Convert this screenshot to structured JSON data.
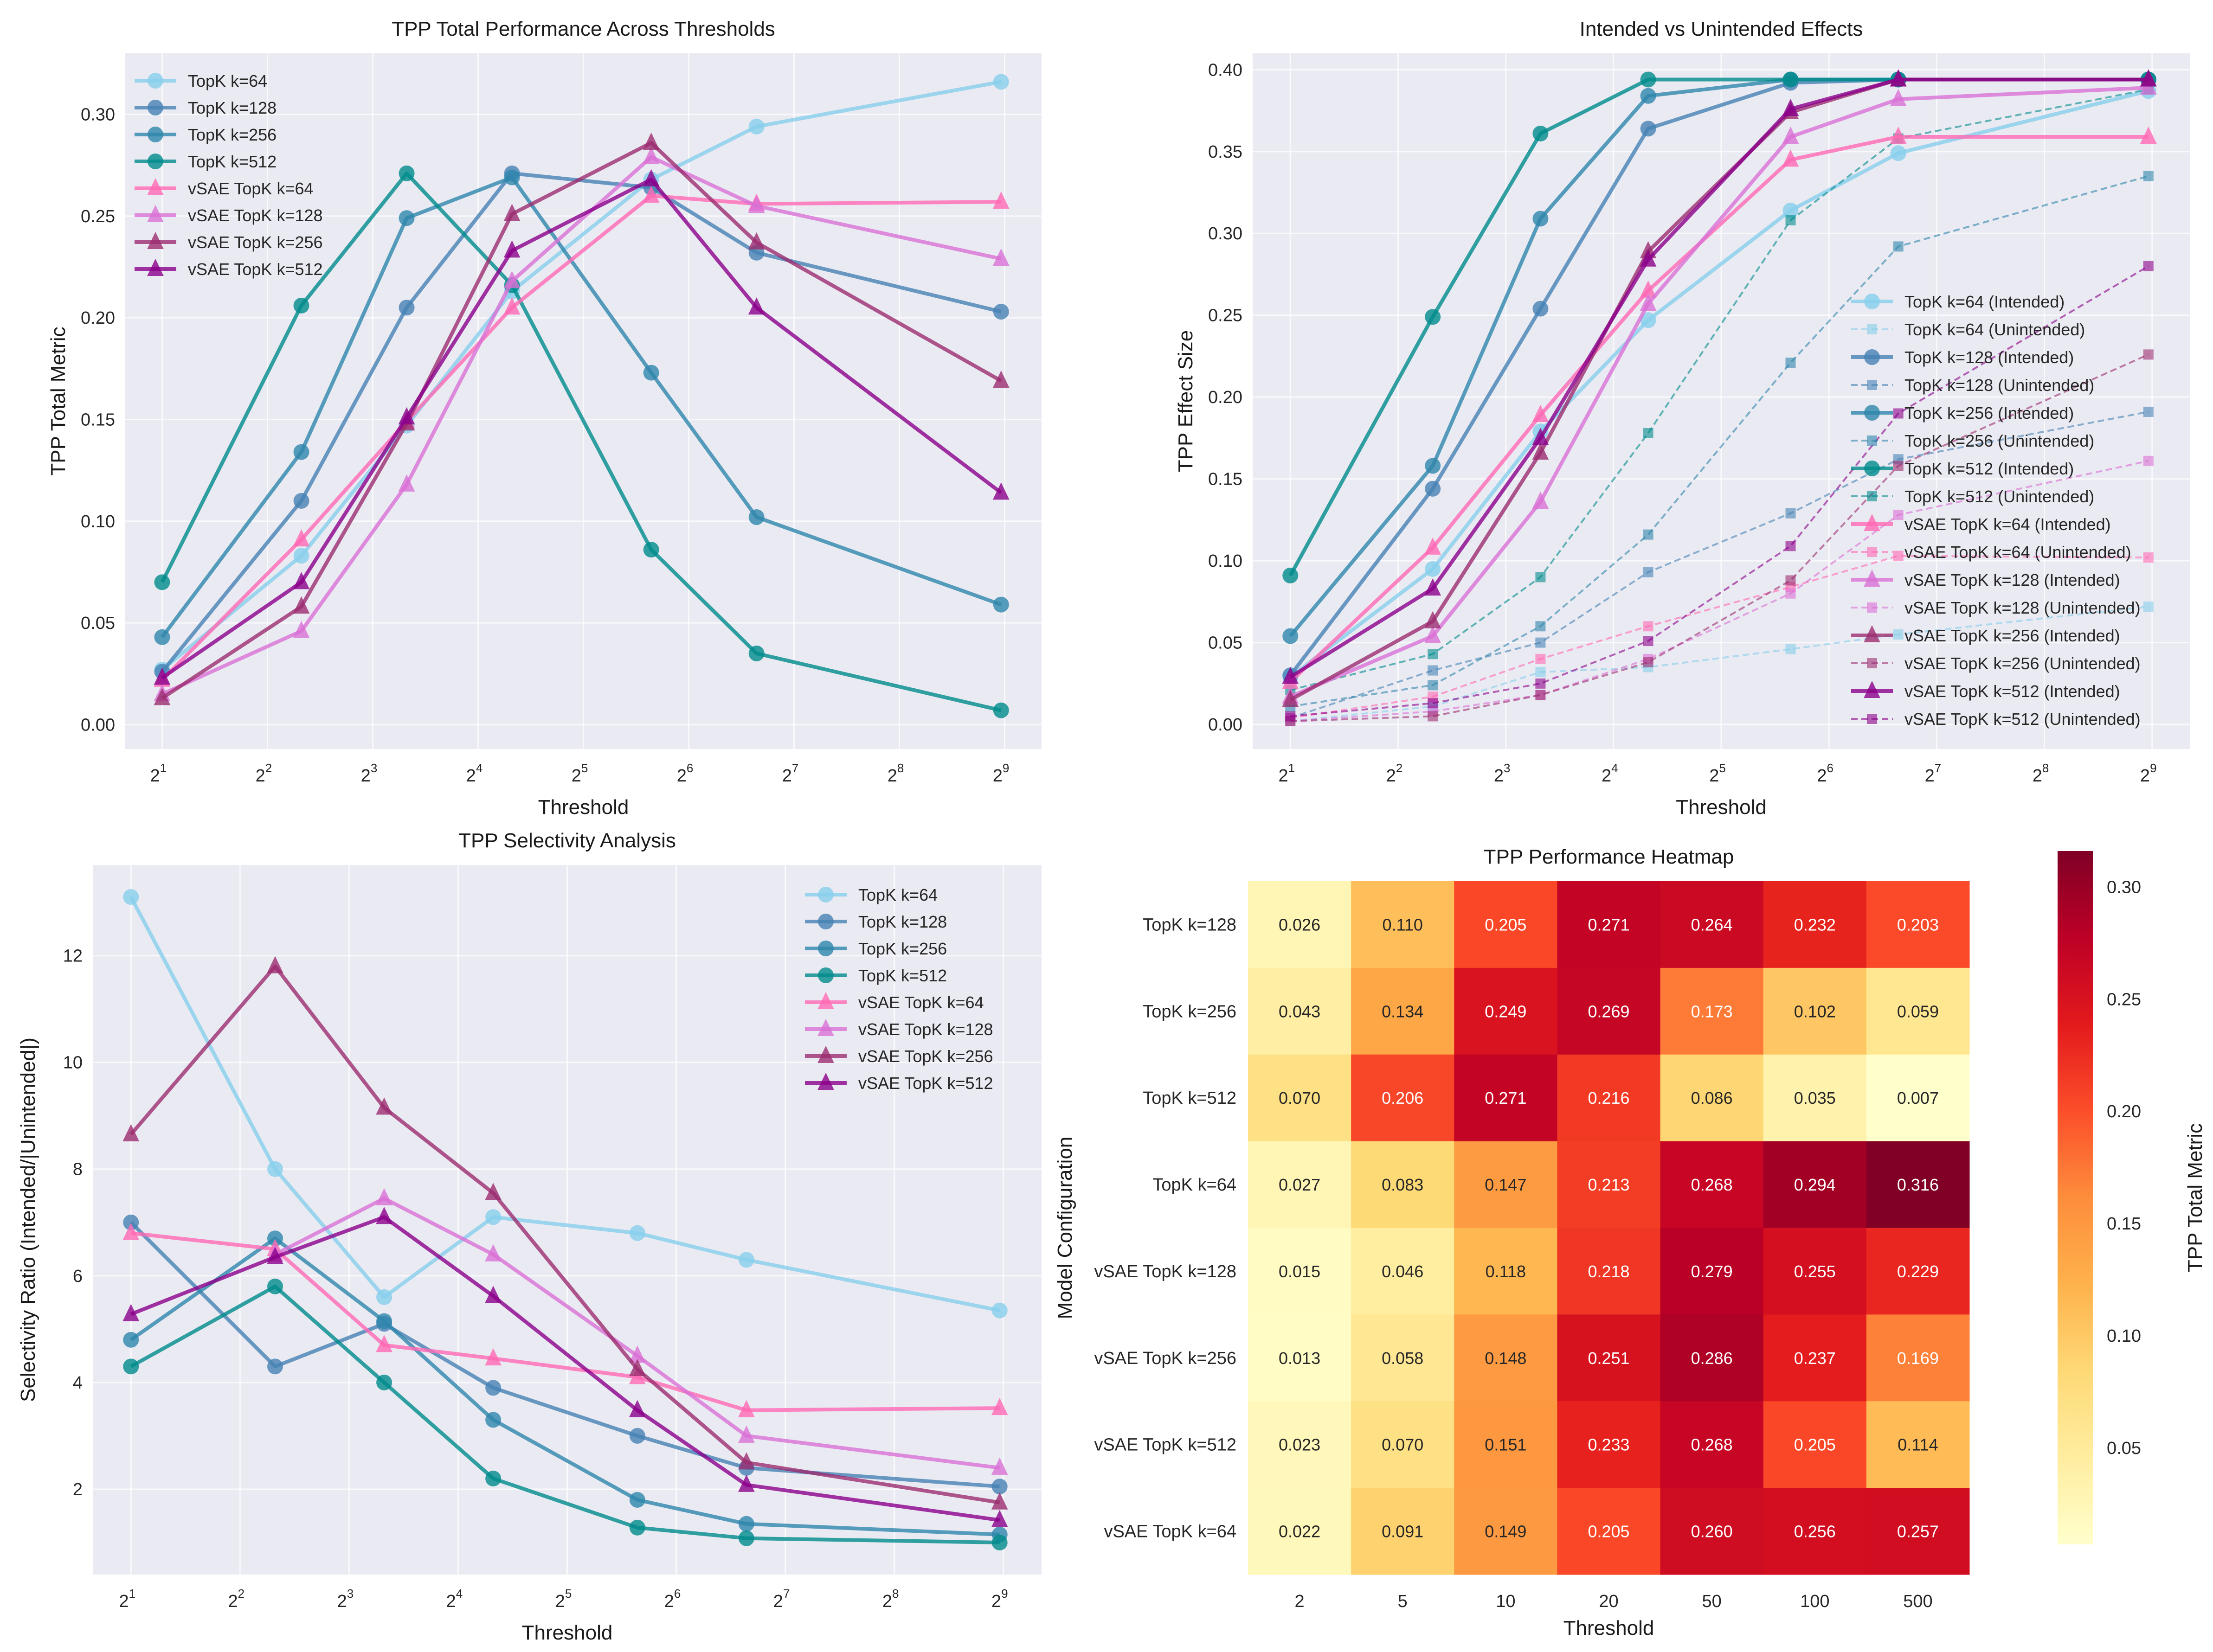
{
  "chart_data": [
    {
      "id": "total",
      "type": "line",
      "title": "TPP Total Performance Across Thresholds",
      "xlabel": "Threshold",
      "ylabel": "TPP Total Metric",
      "xscale": "log2",
      "x": [
        2,
        5,
        10,
        20,
        50,
        100,
        500
      ],
      "xticks": [
        1,
        2,
        3,
        4,
        5,
        6,
        7,
        8,
        9
      ],
      "xtick_base": "2",
      "ylim": [
        -0.012,
        0.33
      ],
      "yticks": [
        "0.00",
        "0.05",
        "0.10",
        "0.15",
        "0.20",
        "0.25",
        "0.30"
      ],
      "ytick_values": [
        0,
        0.05,
        0.1,
        0.15,
        0.2,
        0.25,
        0.3
      ],
      "grid": true,
      "legend": "top-left",
      "series": [
        {
          "name": "TopK k=64",
          "marker": "circle",
          "color": "#87CEEB",
          "values": [
            0.027,
            0.083,
            0.147,
            0.213,
            0.268,
            0.294,
            0.316
          ]
        },
        {
          "name": "TopK k=128",
          "marker": "circle",
          "color": "#4682B4",
          "values": [
            0.026,
            0.11,
            0.205,
            0.271,
            0.264,
            0.232,
            0.203
          ]
        },
        {
          "name": "TopK k=256",
          "marker": "circle",
          "color": "#2E86AB",
          "values": [
            0.043,
            0.134,
            0.249,
            0.269,
            0.173,
            0.102,
            0.059
          ]
        },
        {
          "name": "TopK k=512",
          "marker": "circle",
          "color": "#008B8B",
          "values": [
            0.07,
            0.206,
            0.271,
            0.216,
            0.086,
            0.035,
            0.007
          ]
        },
        {
          "name": "vSAE TopK k=64",
          "marker": "triangle",
          "color": "#FF69B4",
          "values": [
            0.022,
            0.091,
            0.149,
            0.205,
            0.26,
            0.256,
            0.257
          ]
        },
        {
          "name": "vSAE TopK k=128",
          "marker": "triangle",
          "color": "#DA70D6",
          "values": [
            0.015,
            0.046,
            0.118,
            0.218,
            0.279,
            0.255,
            0.229
          ]
        },
        {
          "name": "vSAE TopK k=256",
          "marker": "triangle",
          "color": "#9B2D6F",
          "values": [
            0.013,
            0.058,
            0.148,
            0.251,
            0.286,
            0.237,
            0.169
          ]
        },
        {
          "name": "vSAE TopK k=512",
          "marker": "triangle",
          "color": "#8B008B",
          "values": [
            0.023,
            0.07,
            0.151,
            0.233,
            0.268,
            0.205,
            0.114
          ]
        }
      ]
    },
    {
      "id": "effects",
      "type": "line",
      "title": "Intended vs Unintended Effects",
      "xlabel": "Threshold",
      "ylabel": "TPP Effect Size",
      "xscale": "log2",
      "x": [
        2,
        5,
        10,
        20,
        50,
        100,
        500
      ],
      "xticks": [
        1,
        2,
        3,
        4,
        5,
        6,
        7,
        8,
        9
      ],
      "xtick_base": "2",
      "ylim": [
        -0.015,
        0.41
      ],
      "yticks": [
        "0.00",
        "0.05",
        "0.10",
        "0.15",
        "0.20",
        "0.25",
        "0.30",
        "0.35",
        "0.40"
      ],
      "ytick_values": [
        0,
        0.05,
        0.1,
        0.15,
        0.2,
        0.25,
        0.3,
        0.35,
        0.4
      ],
      "grid": true,
      "legend": "right",
      "series": [
        {
          "name": "TopK k=64 (Intended)",
          "style": "solid",
          "marker": "circle",
          "color": "#87CEEB",
          "values": [
            0.029,
            0.095,
            0.179,
            0.247,
            0.314,
            0.349,
            0.387
          ]
        },
        {
          "name": "TopK k=64 (Unintended)",
          "style": "dashed",
          "marker": "square",
          "color": "#87CEEB",
          "values": [
            0.002,
            0.011,
            0.032,
            0.035,
            0.046,
            0.055,
            0.072
          ]
        },
        {
          "name": "TopK k=128 (Intended)",
          "style": "solid",
          "marker": "circle",
          "color": "#4682B4",
          "values": [
            0.03,
            0.144,
            0.254,
            0.364,
            0.392,
            0.394,
            0.394
          ]
        },
        {
          "name": "TopK k=128 (Unintended)",
          "style": "dashed",
          "marker": "square",
          "color": "#4682B4",
          "values": [
            0.004,
            0.033,
            0.05,
            0.093,
            0.129,
            0.162,
            0.191
          ]
        },
        {
          "name": "TopK k=256 (Intended)",
          "style": "solid",
          "marker": "circle",
          "color": "#2E86AB",
          "values": [
            0.054,
            0.158,
            0.309,
            0.384,
            0.394,
            0.394,
            0.394
          ]
        },
        {
          "name": "TopK k=256 (Unintended)",
          "style": "dashed",
          "marker": "square",
          "color": "#2E86AB",
          "values": [
            0.011,
            0.024,
            0.06,
            0.116,
            0.221,
            0.292,
            0.335
          ]
        },
        {
          "name": "TopK k=512 (Intended)",
          "style": "solid",
          "marker": "circle",
          "color": "#008B8B",
          "values": [
            0.091,
            0.249,
            0.361,
            0.394,
            0.394,
            0.394,
            0.394
          ]
        },
        {
          "name": "TopK k=512 (Unintended)",
          "style": "dashed",
          "marker": "square",
          "color": "#008B8B",
          "values": [
            0.021,
            0.043,
            0.09,
            0.178,
            0.308,
            0.358,
            0.388
          ]
        },
        {
          "name": "vSAE TopK k=64 (Intended)",
          "style": "solid",
          "marker": "triangle",
          "color": "#FF69B4",
          "values": [
            0.026,
            0.108,
            0.189,
            0.265,
            0.345,
            0.359,
            0.359
          ]
        },
        {
          "name": "vSAE TopK k=64 (Unintended)",
          "style": "dashed",
          "marker": "square",
          "color": "#FF69B4",
          "values": [
            0.004,
            0.017,
            0.04,
            0.06,
            0.084,
            0.103,
            0.102
          ]
        },
        {
          "name": "vSAE TopK k=128 (Intended)",
          "style": "solid",
          "marker": "triangle",
          "color": "#DA70D6",
          "values": [
            0.017,
            0.054,
            0.136,
            0.257,
            0.359,
            0.382,
            0.389
          ]
        },
        {
          "name": "vSAE TopK k=128 (Unintended)",
          "style": "dashed",
          "marker": "square",
          "color": "#DA70D6",
          "values": [
            0.002,
            0.008,
            0.018,
            0.04,
            0.08,
            0.128,
            0.161
          ]
        },
        {
          "name": "vSAE TopK k=256 (Intended)",
          "style": "solid",
          "marker": "triangle",
          "color": "#9B2D6F",
          "values": [
            0.015,
            0.063,
            0.166,
            0.289,
            0.374,
            0.394,
            0.394
          ]
        },
        {
          "name": "vSAE TopK k=256 (Unintended)",
          "style": "dashed",
          "marker": "square",
          "color": "#9B2D6F",
          "values": [
            0.002,
            0.005,
            0.018,
            0.038,
            0.088,
            0.158,
            0.226
          ]
        },
        {
          "name": "vSAE TopK k=512 (Intended)",
          "style": "solid",
          "marker": "triangle",
          "color": "#8B008B",
          "values": [
            0.029,
            0.083,
            0.175,
            0.284,
            0.376,
            0.394,
            0.394
          ]
        },
        {
          "name": "vSAE TopK k=512 (Unintended)",
          "style": "dashed",
          "marker": "square",
          "color": "#8B008B",
          "values": [
            0.005,
            0.013,
            0.025,
            0.051,
            0.109,
            0.19,
            0.28
          ]
        }
      ]
    },
    {
      "id": "selectivity",
      "type": "line",
      "title": "TPP Selectivity Analysis",
      "xlabel": "Threshold",
      "ylabel": "Selectivity Ratio (Intended/|Unintended|)",
      "xscale": "log2",
      "x": [
        2,
        5,
        10,
        20,
        50,
        100,
        500
      ],
      "xticks": [
        1,
        2,
        3,
        4,
        5,
        6,
        7,
        8,
        9
      ],
      "xtick_base": "2",
      "ylim": [
        0.4,
        13.7
      ],
      "yticks": [
        "2",
        "4",
        "6",
        "8",
        "10",
        "12"
      ],
      "ytick_values": [
        2,
        4,
        6,
        8,
        10,
        12
      ],
      "grid": true,
      "legend": "top-right",
      "series": [
        {
          "name": "TopK k=64",
          "marker": "circle",
          "color": "#87CEEB",
          "values": [
            13.1,
            8.0,
            5.6,
            7.1,
            6.8,
            6.3,
            5.35
          ]
        },
        {
          "name": "TopK k=128",
          "marker": "circle",
          "color": "#4682B4",
          "values": [
            7.0,
            4.3,
            5.1,
            3.9,
            3.0,
            2.4,
            2.05
          ]
        },
        {
          "name": "TopK k=256",
          "marker": "circle",
          "color": "#2E86AB",
          "values": [
            4.8,
            6.7,
            5.15,
            3.3,
            1.8,
            1.35,
            1.15
          ]
        },
        {
          "name": "TopK k=512",
          "marker": "circle",
          "color": "#008B8B",
          "values": [
            4.3,
            5.8,
            4.0,
            2.2,
            1.28,
            1.08,
            1.0
          ]
        },
        {
          "name": "vSAE TopK k=64",
          "marker": "triangle",
          "color": "#FF69B4",
          "values": [
            6.8,
            6.5,
            4.7,
            4.45,
            4.1,
            3.48,
            3.52
          ]
        },
        {
          "name": "vSAE TopK k=128",
          "marker": "triangle",
          "color": "#DA70D6",
          "values": [
            null,
            6.4,
            7.45,
            6.4,
            4.5,
            3.0,
            2.4
          ]
        },
        {
          "name": "vSAE TopK k=256",
          "marker": "triangle",
          "color": "#9B2D6F",
          "values": [
            8.65,
            11.8,
            9.15,
            7.55,
            4.25,
            2.5,
            1.75
          ]
        },
        {
          "name": "vSAE TopK k=512",
          "marker": "triangle",
          "color": "#8B008B",
          "values": [
            5.28,
            6.35,
            7.1,
            5.62,
            3.48,
            2.08,
            1.42
          ]
        }
      ]
    },
    {
      "id": "heatmap",
      "type": "heatmap",
      "title": "TPP Performance Heatmap",
      "xlabel": "Threshold",
      "ylabel": "Model Configuration",
      "colorbar_label": "TPP Total Metric",
      "colorbar_ticks": [
        "0.05",
        "0.10",
        "0.15",
        "0.20",
        "0.25",
        "0.30"
      ],
      "colorbar_tick_values": [
        0.05,
        0.1,
        0.15,
        0.2,
        0.25,
        0.3
      ],
      "vmin": 0.007,
      "vmax": 0.316,
      "colormap": "YlOrRd",
      "columns": [
        "2",
        "5",
        "10",
        "20",
        "50",
        "100",
        "500"
      ],
      "rows": [
        "TopK k=128",
        "TopK k=256",
        "TopK k=512",
        "TopK k=64",
        "vSAE TopK k=128",
        "vSAE TopK k=256",
        "vSAE TopK k=512",
        "vSAE TopK k=64"
      ],
      "values": [
        [
          0.026,
          0.11,
          0.205,
          0.271,
          0.264,
          0.232,
          0.203
        ],
        [
          0.043,
          0.134,
          0.249,
          0.269,
          0.173,
          0.102,
          0.059
        ],
        [
          0.07,
          0.206,
          0.271,
          0.216,
          0.086,
          0.035,
          0.007
        ],
        [
          0.027,
          0.083,
          0.147,
          0.213,
          0.268,
          0.294,
          0.316
        ],
        [
          0.015,
          0.046,
          0.118,
          0.218,
          0.279,
          0.255,
          0.229
        ],
        [
          0.013,
          0.058,
          0.148,
          0.251,
          0.286,
          0.237,
          0.169
        ],
        [
          0.023,
          0.07,
          0.151,
          0.233,
          0.268,
          0.205,
          0.114
        ],
        [
          0.022,
          0.091,
          0.149,
          0.205,
          0.26,
          0.256,
          0.257
        ]
      ]
    }
  ]
}
